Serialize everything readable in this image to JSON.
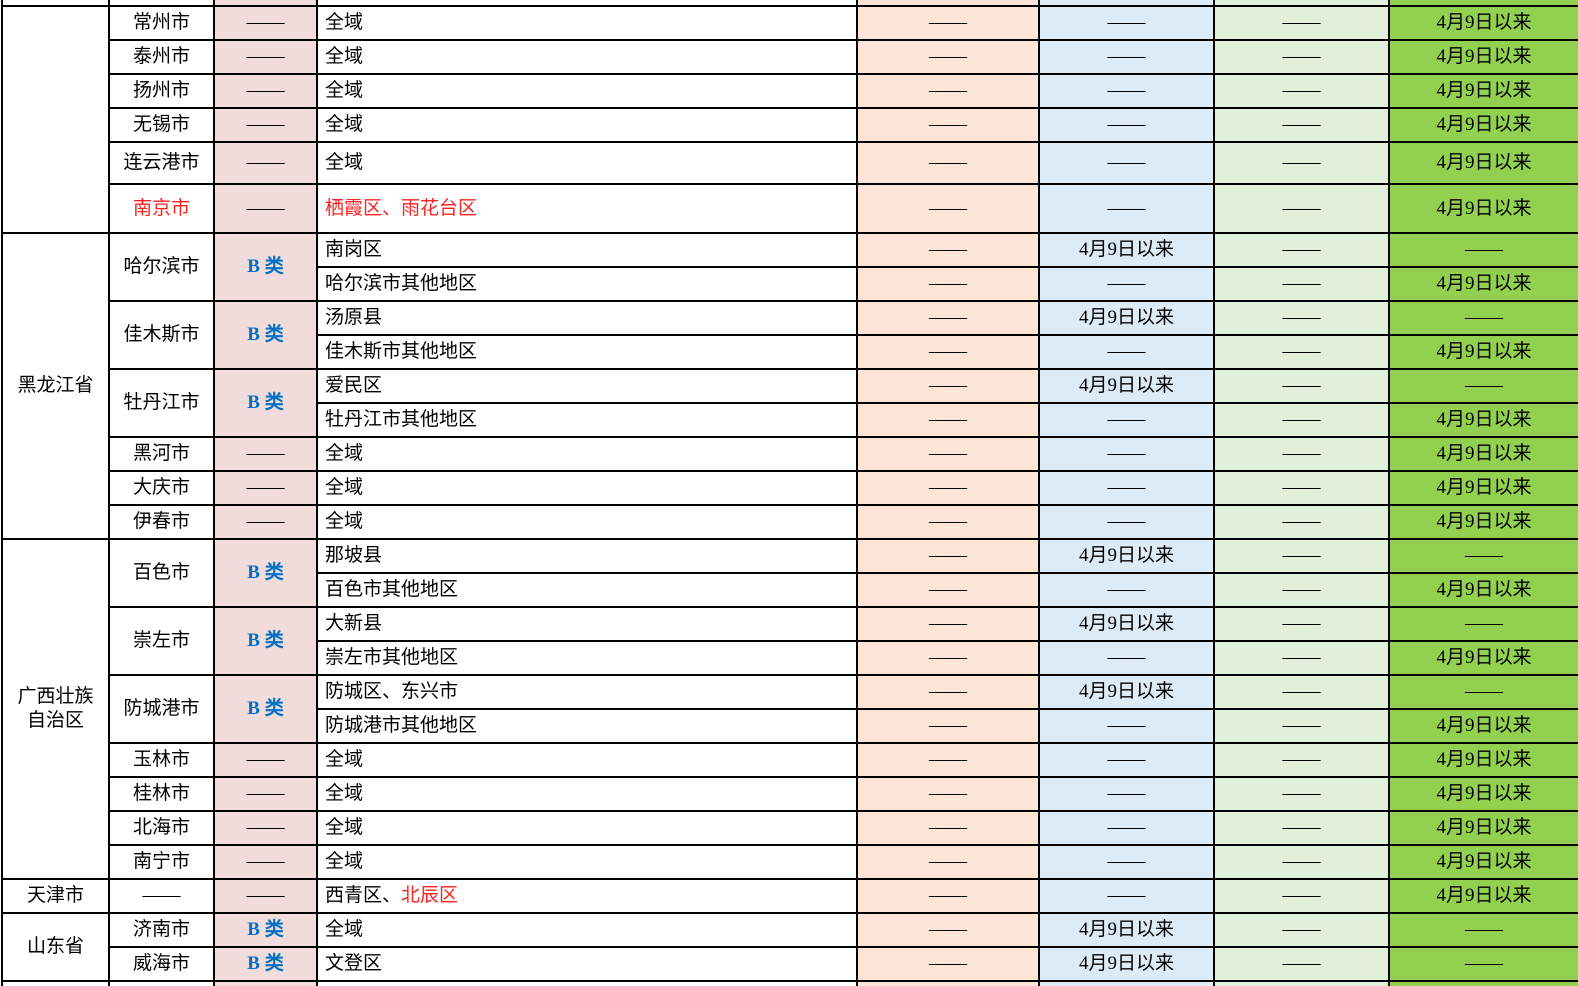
{
  "palette": {
    "category_col_bg": "#F2DCDB",
    "col5_bg": "#FCE4D6",
    "col6_bg": "#DDEBF7",
    "col7_bg": "#E2EFDA",
    "col8_bg": "#92D050",
    "red_text": "#FF2020",
    "category_b_text": "#0070C0",
    "grid_line": "#000000"
  },
  "table": {
    "dash": "——",
    "date_label": "4月9日以来",
    "category_b_label": "B 类",
    "rows": [
      {
        "sliver": "top"
      },
      {
        "province": {
          "lines": [],
          "span": 6
        },
        "city": {
          "label": "常州市",
          "span": 1,
          "red": false
        },
        "category": "——",
        "district": [
          {
            "text": "全域",
            "red": false
          }
        ],
        "cells": [
          "——",
          "——",
          "——",
          "4月9日以来"
        ]
      },
      {
        "city": {
          "label": "泰州市",
          "span": 1,
          "red": false
        },
        "category": "——",
        "district": [
          {
            "text": "全域",
            "red": false
          }
        ],
        "cells": [
          "——",
          "——",
          "——",
          "4月9日以来"
        ]
      },
      {
        "city": {
          "label": "扬州市",
          "span": 1,
          "red": false
        },
        "category": "——",
        "district": [
          {
            "text": "全域",
            "red": false
          }
        ],
        "cells": [
          "——",
          "——",
          "——",
          "4月9日以来"
        ]
      },
      {
        "city": {
          "label": "无锡市",
          "span": 1,
          "red": false
        },
        "category": "——",
        "district": [
          {
            "text": "全域",
            "red": false
          }
        ],
        "cells": [
          "——",
          "——",
          "——",
          "4月9日以来"
        ]
      },
      {
        "city": {
          "label": "连云港市",
          "span": 1,
          "red": false
        },
        "category": "——",
        "district": [
          {
            "text": "全域",
            "red": false
          }
        ],
        "cells": [
          "——",
          "——",
          "——",
          "4月9日以来"
        ],
        "height": 42
      },
      {
        "city": {
          "label": "南京市",
          "span": 1,
          "red": true
        },
        "category": "——",
        "district": [
          {
            "text": "栖霞区、雨花台区",
            "red": true
          }
        ],
        "cells": [
          "——",
          "——",
          "——",
          "4月9日以来"
        ],
        "height": 49
      },
      {
        "province": {
          "lines": [
            "黑龙江省"
          ],
          "span": 9
        },
        "city": {
          "label": "哈尔滨市",
          "span": 2,
          "red": false
        },
        "category": "B 类",
        "district": [
          {
            "text": "南岗区",
            "red": false
          }
        ],
        "cells": [
          "——",
          "4月9日以来",
          "——",
          "——"
        ]
      },
      {
        "district": [
          {
            "text": "哈尔滨市其他地区",
            "red": false
          }
        ],
        "cells": [
          "——",
          "——",
          "——",
          "4月9日以来"
        ]
      },
      {
        "city": {
          "label": "佳木斯市",
          "span": 2,
          "red": false
        },
        "category": "B 类",
        "district": [
          {
            "text": "汤原县",
            "red": false
          }
        ],
        "cells": [
          "——",
          "4月9日以来",
          "——",
          "——"
        ]
      },
      {
        "district": [
          {
            "text": "佳木斯市其他地区",
            "red": false
          }
        ],
        "cells": [
          "——",
          "——",
          "——",
          "4月9日以来"
        ]
      },
      {
        "city": {
          "label": "牡丹江市",
          "span": 2,
          "red": false
        },
        "category": "B 类",
        "district": [
          {
            "text": "爱民区",
            "red": false
          }
        ],
        "cells": [
          "——",
          "4月9日以来",
          "——",
          "——"
        ]
      },
      {
        "district": [
          {
            "text": "牡丹江市其他地区",
            "red": false
          }
        ],
        "cells": [
          "——",
          "——",
          "——",
          "4月9日以来"
        ]
      },
      {
        "city": {
          "label": "黑河市",
          "span": 1,
          "red": false
        },
        "category": "——",
        "district": [
          {
            "text": "全域",
            "red": false
          }
        ],
        "cells": [
          "——",
          "——",
          "——",
          "4月9日以来"
        ]
      },
      {
        "city": {
          "label": "大庆市",
          "span": 1,
          "red": false
        },
        "category": "——",
        "district": [
          {
            "text": "全域",
            "red": false
          }
        ],
        "cells": [
          "——",
          "——",
          "——",
          "4月9日以来"
        ]
      },
      {
        "city": {
          "label": "伊春市",
          "span": 1,
          "red": false
        },
        "category": "——",
        "district": [
          {
            "text": "全域",
            "red": false
          }
        ],
        "cells": [
          "——",
          "——",
          "——",
          "4月9日以来"
        ]
      },
      {
        "province": {
          "lines": [
            "广西壮族",
            "自治区"
          ],
          "span": 10
        },
        "city": {
          "label": "百色市",
          "span": 2,
          "red": false
        },
        "category": "B 类",
        "district": [
          {
            "text": "那坡县",
            "red": false
          }
        ],
        "cells": [
          "——",
          "4月9日以来",
          "——",
          "——"
        ]
      },
      {
        "district": [
          {
            "text": "百色市其他地区",
            "red": false
          }
        ],
        "cells": [
          "——",
          "——",
          "——",
          "4月9日以来"
        ]
      },
      {
        "city": {
          "label": "崇左市",
          "span": 2,
          "red": false
        },
        "category": "B 类",
        "district": [
          {
            "text": "大新县",
            "red": false
          }
        ],
        "cells": [
          "——",
          "4月9日以来",
          "——",
          "——"
        ]
      },
      {
        "district": [
          {
            "text": "崇左市其他地区",
            "red": false
          }
        ],
        "cells": [
          "——",
          "——",
          "——",
          "4月9日以来"
        ]
      },
      {
        "city": {
          "label": "防城港市",
          "span": 2,
          "red": false
        },
        "category": "B 类",
        "district": [
          {
            "text": "防城区、东兴市",
            "red": false
          }
        ],
        "cells": [
          "——",
          "4月9日以来",
          "——",
          "——"
        ]
      },
      {
        "district": [
          {
            "text": "防城港市其他地区",
            "red": false
          }
        ],
        "cells": [
          "——",
          "——",
          "——",
          "4月9日以来"
        ]
      },
      {
        "city": {
          "label": "玉林市",
          "span": 1,
          "red": false
        },
        "category": "——",
        "district": [
          {
            "text": "全域",
            "red": false
          }
        ],
        "cells": [
          "——",
          "——",
          "——",
          "4月9日以来"
        ]
      },
      {
        "city": {
          "label": "桂林市",
          "span": 1,
          "red": false
        },
        "category": "——",
        "district": [
          {
            "text": "全域",
            "red": false
          }
        ],
        "cells": [
          "——",
          "——",
          "——",
          "4月9日以来"
        ]
      },
      {
        "city": {
          "label": "北海市",
          "span": 1,
          "red": false
        },
        "category": "——",
        "district": [
          {
            "text": "全域",
            "red": false
          }
        ],
        "cells": [
          "——",
          "——",
          "——",
          "4月9日以来"
        ]
      },
      {
        "city": {
          "label": "南宁市",
          "span": 1,
          "red": false
        },
        "category": "——",
        "district": [
          {
            "text": "全域",
            "red": false
          }
        ],
        "cells": [
          "——",
          "——",
          "——",
          "4月9日以来"
        ]
      },
      {
        "province": {
          "lines": [
            "天津市"
          ],
          "span": 1
        },
        "city": {
          "label": "——",
          "span": 1,
          "red": false
        },
        "category": "——",
        "district": [
          {
            "text": "西青区、",
            "red": false
          },
          {
            "text": "北辰区",
            "red": true
          }
        ],
        "cells": [
          "——",
          "——",
          "——",
          "4月9日以来"
        ]
      },
      {
        "province": {
          "lines": [
            "山东省"
          ],
          "span": 2
        },
        "city": {
          "label": "济南市",
          "span": 1,
          "red": false
        },
        "category": "B 类",
        "district": [
          {
            "text": "全域",
            "red": false
          }
        ],
        "cells": [
          "——",
          "4月9日以来",
          "——",
          "——"
        ]
      },
      {
        "city": {
          "label": "威海市",
          "span": 1,
          "red": false
        },
        "category": "B 类",
        "district": [
          {
            "text": "文登区",
            "red": false
          }
        ],
        "cells": [
          "——",
          "4月9日以来",
          "——",
          "——"
        ]
      },
      {
        "sliver": "bottom"
      }
    ]
  }
}
